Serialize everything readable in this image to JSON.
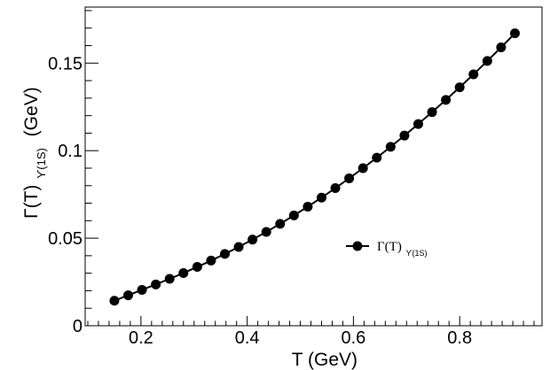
{
  "chart_data": {
    "type": "line",
    "xlabel": "T (GeV)",
    "ylabel_main": "Γ(T)",
    "ylabel_sub": "ϒ(1S)",
    "ylabel_unit": "(GeV)",
    "xlim": [
      0.095,
      0.955
    ],
    "ylim": [
      0,
      0.182
    ],
    "x_ticks": [
      {
        "value": 0.2,
        "label": "0.2"
      },
      {
        "value": 0.4,
        "label": "0.4"
      },
      {
        "value": 0.6,
        "label": "0.6"
      },
      {
        "value": 0.8,
        "label": "0.8"
      }
    ],
    "y_ticks": [
      {
        "value": 0,
        "label": "0"
      },
      {
        "value": 0.05,
        "label": "0.05"
      },
      {
        "value": 0.1,
        "label": "0.1"
      },
      {
        "value": 0.15,
        "label": "0.15"
      }
    ],
    "x_minor_step": 0.02,
    "y_minor_step": 0.01,
    "legend": {
      "position": "center-right",
      "label_main": "Γ(T)",
      "label_sub": "ϒ(1S)"
    },
    "series": [
      {
        "name": "Γ(T)ϒ(1S)",
        "color": "#000000",
        "marker": "filled-circle",
        "x": [
          0.15,
          0.176,
          0.202,
          0.228,
          0.254,
          0.28,
          0.306,
          0.332,
          0.358,
          0.384,
          0.41,
          0.436,
          0.462,
          0.488,
          0.514,
          0.54,
          0.566,
          0.592,
          0.618,
          0.644,
          0.67,
          0.696,
          0.722,
          0.748,
          0.774,
          0.8,
          0.826,
          0.852,
          0.878,
          0.904
        ],
        "values": [
          0.0143,
          0.0174,
          0.0205,
          0.0236,
          0.0268,
          0.0301,
          0.0336,
          0.0372,
          0.041,
          0.045,
          0.0492,
          0.0536,
          0.0582,
          0.063,
          0.068,
          0.0732,
          0.0786,
          0.0842,
          0.09,
          0.096,
          0.1022,
          0.1086,
          0.1152,
          0.122,
          0.129,
          0.1362,
          0.1436,
          0.1512,
          0.159,
          0.167
        ]
      }
    ]
  }
}
